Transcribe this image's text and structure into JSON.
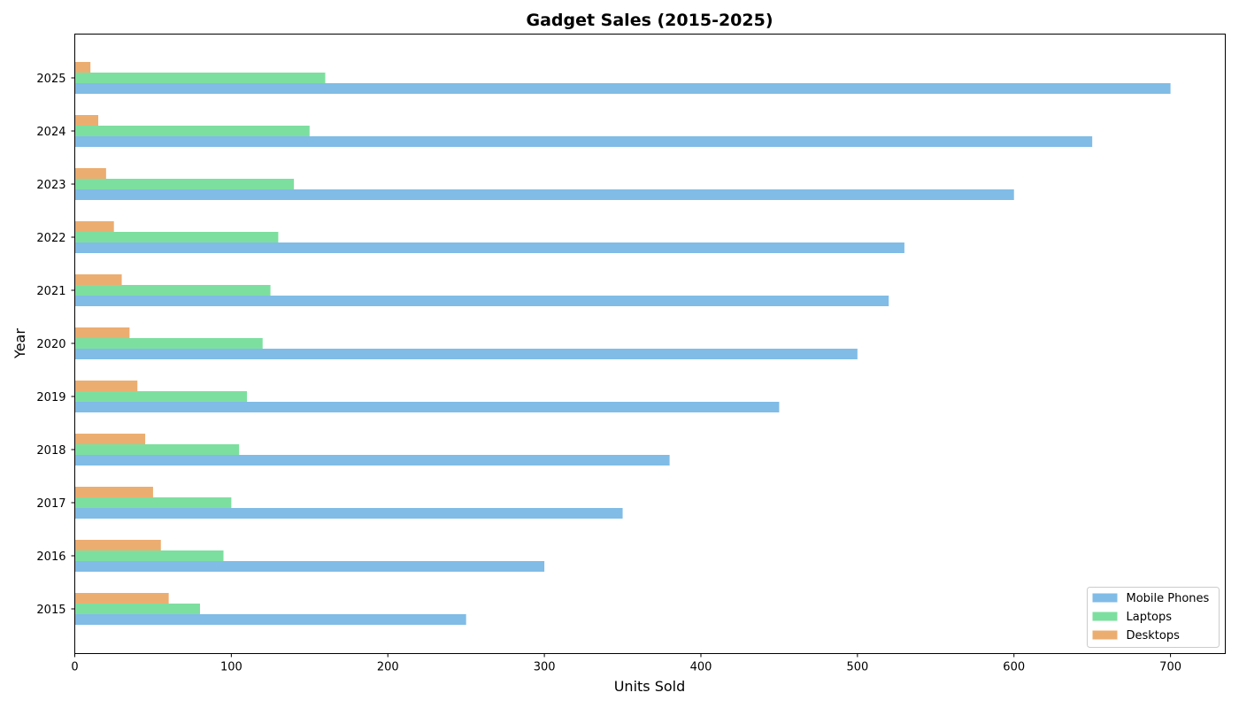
{
  "chart_data": {
    "type": "bar",
    "orientation": "horizontal",
    "title": "Gadget Sales (2015-2025)",
    "xlabel": "Units Sold",
    "ylabel": "Year",
    "categories": [
      "2015",
      "2016",
      "2017",
      "2018",
      "2019",
      "2020",
      "2021",
      "2022",
      "2023",
      "2024",
      "2025"
    ],
    "series": [
      {
        "name": "Mobile Phones",
        "color": "#80bce6",
        "values": [
          250,
          300,
          350,
          380,
          450,
          500,
          520,
          530,
          600,
          650,
          700
        ]
      },
      {
        "name": "Laptops",
        "color": "#7ddf9f",
        "values": [
          80,
          95,
          100,
          105,
          110,
          120,
          125,
          130,
          140,
          150,
          160
        ]
      },
      {
        "name": "Desktops",
        "color": "#ecad70",
        "values": [
          60,
          55,
          50,
          45,
          40,
          35,
          30,
          25,
          20,
          15,
          10
        ]
      }
    ],
    "xlim": [
      0,
      735
    ],
    "xticks": [
      0,
      100,
      200,
      300,
      400,
      500,
      600,
      700
    ],
    "grid": false,
    "legend_position": "bottom-right"
  }
}
